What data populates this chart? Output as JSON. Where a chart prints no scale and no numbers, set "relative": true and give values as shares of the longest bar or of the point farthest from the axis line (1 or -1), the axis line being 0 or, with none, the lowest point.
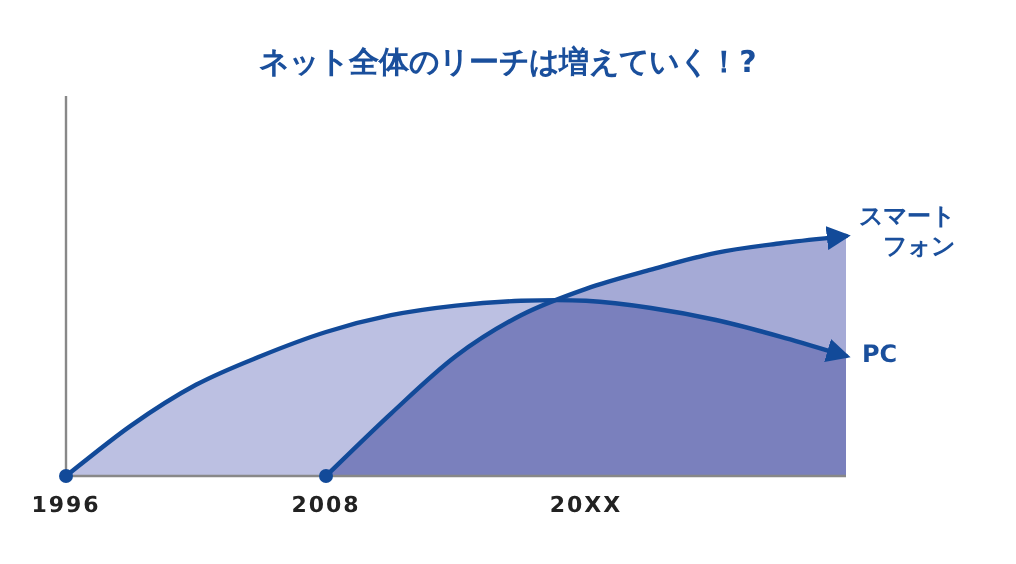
{
  "chart_data": {
    "type": "area",
    "title": "ネット全体のリーチは増えていく！?",
    "relative": true,
    "categories": [
      "1996",
      null,
      null,
      null,
      "2008",
      null,
      null,
      null,
      "20XX",
      null,
      null,
      null,
      null
    ],
    "series": [
      {
        "name": "PC",
        "color": "#bcc0e2",
        "values": [
          0,
          0.21,
          0.38,
          0.5,
          0.6,
          0.67,
          0.71,
          0.73,
          0.73,
          0.7,
          0.65,
          0.58,
          0.5
        ]
      },
      {
        "name": "スマートフォン",
        "color": "#a5aad6",
        "values": [
          null,
          null,
          null,
          null,
          0,
          0.26,
          0.5,
          0.67,
          0.78,
          0.86,
          0.93,
          0.97,
          1
        ]
      }
    ]
  }
}
